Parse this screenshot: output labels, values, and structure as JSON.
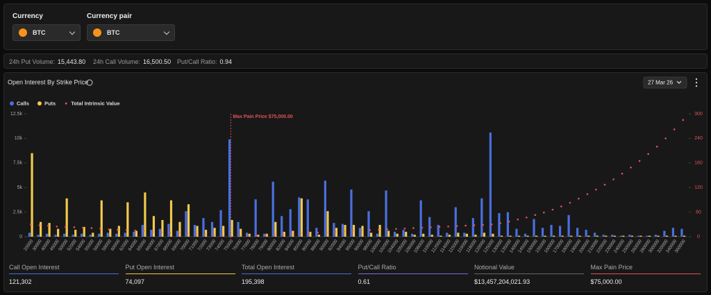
{
  "filters": [
    {
      "label": "Currency",
      "value": "BTC"
    },
    {
      "label": "Currency pair",
      "value": "BTC"
    }
  ],
  "stats": [
    {
      "label": "24h Put Volume:",
      "value": "15,443.80"
    },
    {
      "label": "24h Call Volume:",
      "value": "16,500.50"
    },
    {
      "label": "Put/Call Ratio:",
      "value": "0.94"
    }
  ],
  "chart_data": {
    "type": "bar",
    "title": "Open Interest By Strike Price",
    "expiry": "27 Mar 26",
    "annotations": [
      {
        "text": "Max Pain Price $75,000.00",
        "x": "75000",
        "color": "#e0505c"
      }
    ],
    "categories": [
      "20000",
      "30000",
      "40000",
      "45000",
      "50000",
      "52000",
      "54000",
      "55000",
      "56000",
      "58000",
      "60000",
      "62000",
      "64000",
      "65000",
      "66000",
      "67000",
      "68000",
      "69000",
      "70000",
      "71000",
      "72000",
      "73000",
      "74000",
      "75000",
      "76000",
      "77000",
      "78000",
      "79000",
      "80000",
      "82000",
      "84000",
      "85000",
      "86000",
      "88000",
      "90000",
      "92000",
      "94000",
      "95000",
      "96000",
      "98000",
      "100000",
      "102000",
      "104000",
      "105000",
      "106000",
      "108000",
      "110000",
      "112000",
      "114000",
      "115000",
      "116000",
      "118000",
      "120000",
      "125000",
      "130000",
      "135000",
      "140000",
      "145000",
      "150000",
      "155000",
      "160000",
      "170000",
      "180000",
      "190000",
      "200000",
      "210000",
      "220000",
      "230000",
      "240000",
      "250000",
      "260000",
      "280000",
      "300000",
      "320000",
      "340000",
      "360000"
    ],
    "series": [
      {
        "name": "Calls",
        "color": "#4a6fe0",
        "values": [
          400,
          200,
          300,
          200,
          300,
          200,
          300,
          200,
          300,
          400,
          300,
          400,
          500,
          1200,
          700,
          800,
          1300,
          600,
          2600,
          1200,
          1900,
          1500,
          2700,
          9900,
          1500,
          400,
          3800,
          300,
          5600,
          2100,
          2800,
          4000,
          3800,
          900,
          5700,
          1400,
          1300,
          4800,
          900,
          2600,
          300,
          4700,
          500,
          700,
          300,
          3700,
          2000,
          1200,
          400,
          3000,
          400,
          1900,
          3900,
          10600,
          2400,
          2500,
          800,
          300,
          1800,
          900,
          1200,
          1100,
          2200,
          900,
          700,
          400,
          200,
          200,
          100,
          200,
          100,
          100,
          200,
          600,
          900,
          800
        ]
      },
      {
        "name": "Puts",
        "color": "#f2c94c",
        "values": [
          8500,
          1500,
          1400,
          800,
          3900,
          700,
          1000,
          400,
          3700,
          800,
          1100,
          3500,
          600,
          4500,
          2100,
          1700,
          3700,
          1500,
          3300,
          1100,
          700,
          900,
          1100,
          1700,
          800,
          300,
          200,
          300,
          1500,
          500,
          600,
          3900,
          500,
          200,
          2600,
          900,
          1200,
          1200,
          1100,
          400,
          1200,
          600,
          300,
          500,
          200,
          300,
          200,
          100,
          200,
          400,
          300,
          200,
          400,
          300,
          100,
          100,
          100,
          100,
          100,
          100,
          100,
          100,
          100,
          100,
          100,
          100,
          100,
          100,
          100,
          100,
          100,
          100,
          100,
          100,
          100,
          100
        ]
      },
      {
        "name": "Total Intrinsic Value",
        "color": "#e0505c",
        "type": "scatter",
        "axis": "y2",
        "values": [
          30,
          28,
          27,
          25,
          24,
          23,
          22,
          21,
          20,
          18,
          17,
          16,
          15,
          14,
          12,
          11,
          10,
          9,
          8,
          6,
          5,
          4,
          2,
          0,
          1,
          2,
          3,
          4,
          5,
          6,
          7,
          8,
          9,
          10,
          11,
          12,
          13,
          14,
          15,
          16,
          17,
          18,
          19,
          20,
          21,
          22,
          23,
          24,
          25,
          26,
          27,
          28,
          29,
          30,
          33,
          37,
          42,
          47,
          53,
          59,
          66,
          74,
          83,
          93,
          104,
          115,
          127,
          140,
          154,
          169,
          185,
          202,
          220,
          240,
          262,
          285
        ]
      }
    ],
    "ylim": [
      0,
      12500
    ],
    "yticks": [
      0,
      {
        "value": 2500,
        "label": "2.5k"
      },
      {
        "value": 5000,
        "label": "5k"
      },
      {
        "value": 7500,
        "label": "7.5k"
      },
      {
        "value": 10000,
        "label": "10k"
      },
      {
        "value": 12500,
        "label": "12.5k"
      }
    ],
    "y2lim": [
      0,
      300
    ],
    "y2ticks": [
      0,
      60,
      120,
      180,
      240,
      300
    ],
    "y2_color": "#e0505c",
    "grid": false
  },
  "summary": [
    {
      "label": "Call Open Interest",
      "value": "121,302",
      "color": "#4a6fe0"
    },
    {
      "label": "Put Open Interest",
      "value": "74,097",
      "color": "#f2c94c"
    },
    {
      "label": "Total Open Interest",
      "value": "195,398",
      "color": "#4a6fe0"
    },
    {
      "label": "Put/Call Ratio",
      "value": "0.61",
      "color": "#7b6fe0"
    },
    {
      "label": "Notional Value",
      "value": "$13,457,204,021.93",
      "color": "#666666"
    },
    {
      "label": "Max Pain Price",
      "value": "$75,000.00",
      "color": "#e0505c"
    }
  ]
}
